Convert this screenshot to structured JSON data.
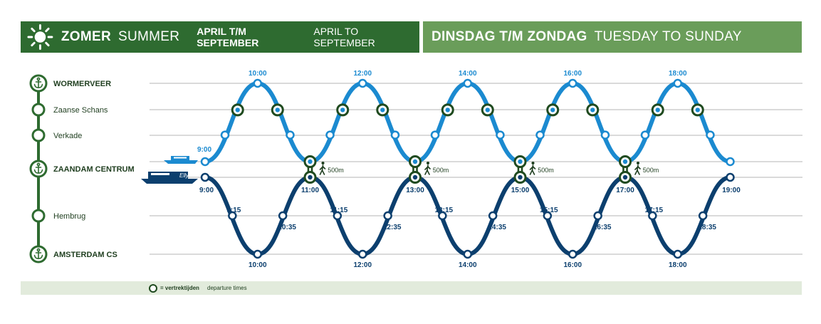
{
  "header": {
    "season_nl": "ZOMER",
    "season_en": "SUMMER",
    "period_nl": "APRIL T/M SEPTEMBER",
    "period_en": "APRIL TO SEPTEMBER",
    "days_nl": "DINSDAG T/M ZONDAG",
    "days_en": "TUESDAY TO SUNDAY"
  },
  "stops": [
    {
      "name": "WORMERVEER",
      "anchor": true,
      "bold": true
    },
    {
      "name": "Zaanse Schans",
      "anchor": false,
      "bold": false
    },
    {
      "name": "Verkade",
      "anchor": false,
      "bold": false
    },
    {
      "name": "ZAANDAM CENTRUM",
      "anchor": true,
      "bold": true
    },
    {
      "name": "Hembrug",
      "anchor": false,
      "bold": false
    },
    {
      "name": "AMSTERDAM CS",
      "anchor": true,
      "bold": true
    }
  ],
  "boats": {
    "lower_boat_name": "Elly"
  },
  "walk_label": "500m",
  "upper_route": {
    "start_time": "9:00",
    "peak_times": [
      "10:00",
      "12:00",
      "14:00",
      "16:00",
      "18:00"
    ]
  },
  "lower_route": {
    "start_time": "9:00",
    "end_time": "19:00",
    "zaandam_departures": [
      "11:00",
      "13:00",
      "15:00",
      "17:00"
    ],
    "amsterdam_times": [
      "10:00",
      "12:00",
      "14:00",
      "16:00",
      "18:00"
    ],
    "hembrug_down_times": [
      "9:15",
      "11:15",
      "13:15",
      "15:15",
      "17:15"
    ],
    "hembrug_up_times": [
      "10:35",
      "12:35",
      "14:35",
      "16:35",
      "18:35"
    ]
  },
  "legend": {
    "label_nl": "= vertrektijden",
    "label_en": "departure times"
  },
  "colors": {
    "header_dark": "#2e6b30",
    "header_light": "#6a9d5a",
    "upper_route": "#1b8ad0",
    "lower_route": "#0c3f6e",
    "stop_line": "#2e6b30",
    "departure_ring": "#1f4a1f",
    "legend_bg": "#e2ebdc"
  },
  "icons": [
    "sun-icon",
    "anchor-icon",
    "boat-icon",
    "walking-person-icon"
  ]
}
